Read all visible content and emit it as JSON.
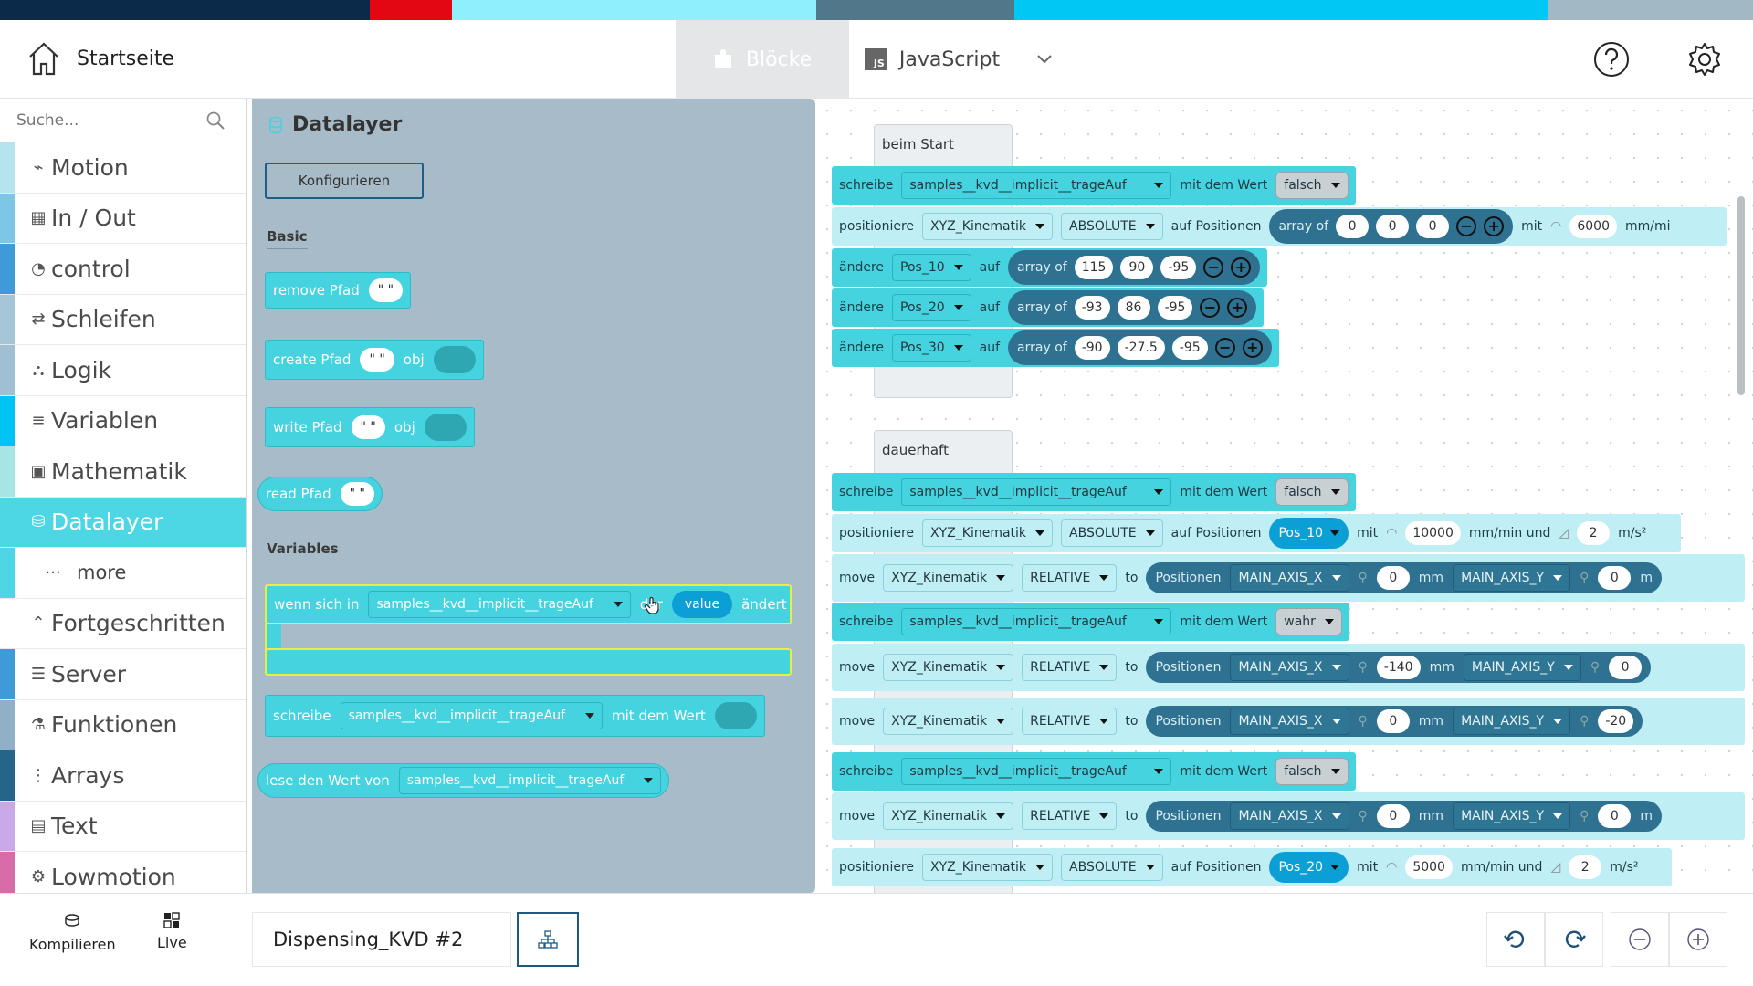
{
  "colorbar": [
    "#0b2a4a",
    "#e30613",
    "#8ff0fb",
    "#50778a",
    "#00c8f5",
    "#a3b8c5"
  ],
  "header": {
    "home_label": "Startseite",
    "tab_blocks": "Blöcke",
    "tab_js": "JavaScript",
    "js_badge": "JS"
  },
  "sidebar": {
    "search_placeholder": "Suche...",
    "categories": [
      {
        "label": "Motion",
        "color": "#b6e4ee",
        "icon": "motion-icon"
      },
      {
        "label": "In / Out",
        "color": "#7cc6e8",
        "icon": "chip-icon"
      },
      {
        "label": "control",
        "color": "#3f9ad8",
        "icon": "clock-icon"
      },
      {
        "label": "Schleifen",
        "color": "#a4c6d6",
        "icon": "loop-icon"
      },
      {
        "label": "Logik",
        "color": "#9fc0d2",
        "icon": "logic-icon"
      },
      {
        "label": "Variablen",
        "color": "#00c3f5",
        "icon": "list-icon"
      },
      {
        "label": "Mathematik",
        "color": "#a7e4e4",
        "icon": "calculator-icon"
      },
      {
        "label": "Datalayer",
        "color": "#4dd6e3",
        "icon": "database-icon"
      },
      {
        "label": "more",
        "color": "#4dd6e3",
        "icon": "ellipsis-icon"
      },
      {
        "label": "Fortgeschritten",
        "color": "#ffffff",
        "icon": "chevron-up-icon"
      },
      {
        "label": "Server",
        "color": "#3f9ad8",
        "icon": "server-icon"
      },
      {
        "label": "Funktionen",
        "color": "#8fb0c6",
        "icon": "flask-icon"
      },
      {
        "label": "Arrays",
        "color": "#26658a",
        "icon": "array-icon"
      },
      {
        "label": "Text",
        "color": "#c9a9e8",
        "icon": "document-icon"
      },
      {
        "label": "Lowmotion",
        "color": "#d76ca8",
        "icon": "robot-icon"
      }
    ]
  },
  "flyout": {
    "title": "Datalayer",
    "configure": "Konfigurieren",
    "basic": "Basic",
    "variables": "Variables",
    "quote": "\" \"",
    "remove": "remove Pfad",
    "create": "create Pfad",
    "write": "write Pfad",
    "read": "read Pfad",
    "obj": "obj",
    "wenn": "wenn sich in",
    "var": "samples__kvd__implicit__trageAuf",
    "der": "der",
    "value": "value",
    "aendert": "ändert",
    "schreibe": "schreibe",
    "mit_dem_wert": "mit dem Wert",
    "lese": "lese den Wert von"
  },
  "workspace": {
    "start_label": "beim Start",
    "loop_label": "dauerhaft",
    "t": {
      "schreibe": "schreibe",
      "mit_dem_wert": "mit dem Wert",
      "positioniere": "positioniere",
      "auf_positionen": "auf Positionen",
      "array_of": "array of",
      "mit": "mit",
      "mm_mi": "mm/mi",
      "aendere": "ändere",
      "auf": "auf",
      "move": "move",
      "to": "to",
      "positionen": "Positionen",
      "mm": "mm",
      "mm_min_und": "mm/min und",
      "m_s2": "m/s²",
      "m": "m",
      "var": "samples__kvd__implicit__trageAuf",
      "kin": "XYZ_Kinematik",
      "absolute": "ABSOLUTE",
      "relative": "RELATIVE",
      "axis_x": "MAIN_AXIS_X",
      "axis_y": "MAIN_AXIS_Y",
      "falsch": "falsch",
      "wahr": "wahr",
      "pos10": "Pos_10",
      "pos20": "Pos_20",
      "pos30": "Pos_30"
    },
    "v": {
      "start_arr": [
        "0",
        "0",
        "0"
      ],
      "start_speed": "6000",
      "pos10": [
        "115",
        "90",
        "-95"
      ],
      "pos20": [
        "-93",
        "86",
        "-95"
      ],
      "pos30": [
        "-90",
        "-27.5",
        "-95"
      ],
      "loop_speed1": "10000",
      "loop_acc1": "2",
      "m1x": "0",
      "m1y": "0",
      "m2x": "-140",
      "m2y": "0",
      "m3x": "0",
      "m3y": "-20",
      "m4x": "0",
      "m4y": "0",
      "loop_speed2": "5000",
      "loop_acc2": "2"
    }
  },
  "bottom": {
    "compile": "Kompilieren",
    "live": "Live",
    "project": "Dispensing_KVD #2"
  }
}
